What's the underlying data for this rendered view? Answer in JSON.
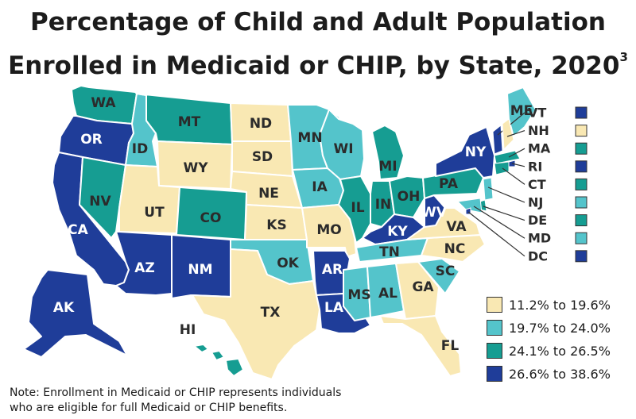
{
  "title": {
    "line1": "Percentage of Child and Adult Population",
    "line2": "Enrolled in Medicaid or CHIP, by State, 2020",
    "footnote_marker": "3"
  },
  "colors": {
    "c1": "#f9e8b3",
    "c2": "#54c4cb",
    "c3": "#169d92",
    "c4": "#1f3d99",
    "map_bg": "#ffffff"
  },
  "legend": [
    {
      "label": "11.2% to 19.6%",
      "color": "#f9e8b3"
    },
    {
      "label": "19.7% to 24.0%",
      "color": "#54c4cb"
    },
    {
      "label": "24.1% to 26.5%",
      "color": "#169d92"
    },
    {
      "label": "26.6% to 38.6%",
      "color": "#1f3d99"
    }
  ],
  "states": {
    "WA": "c3",
    "OR": "c4",
    "CA": "c4",
    "NV": "c3",
    "ID": "c2",
    "MT": "c3",
    "WY": "c1",
    "UT": "c1",
    "AZ": "c4",
    "CO": "c3",
    "NM": "c4",
    "ND": "c1",
    "SD": "c1",
    "NE": "c1",
    "KS": "c1",
    "OK": "c2",
    "TX": "c1",
    "MN": "c2",
    "IA": "c2",
    "MO": "c1",
    "AR": "c4",
    "LA": "c4",
    "WI": "c2",
    "IL": "c3",
    "MI": "c3",
    "IN": "c3",
    "OH": "c3",
    "KY": "c4",
    "TN": "c2",
    "MS": "c2",
    "AL": "c2",
    "GA": "c1",
    "FL": "c1",
    "SC": "c2",
    "NC": "c1",
    "VA": "c1",
    "WV": "c4",
    "PA": "c3",
    "NY": "c4",
    "ME": "c2",
    "AK": "c4",
    "HI": "c3"
  },
  "side_states": [
    {
      "code": "VT",
      "color": "c4"
    },
    {
      "code": "NH",
      "color": "c1"
    },
    {
      "code": "MA",
      "color": "c3"
    },
    {
      "code": "RI",
      "color": "c4"
    },
    {
      "code": "CT",
      "color": "c3"
    },
    {
      "code": "NJ",
      "color": "c2"
    },
    {
      "code": "DE",
      "color": "c3"
    },
    {
      "code": "MD",
      "color": "c2"
    },
    {
      "code": "DC",
      "color": "c4"
    }
  ],
  "note": {
    "line1": "Note: Enrollment in Medicaid or CHIP represents individuals",
    "line2": "who are eligible for full Medicaid or CHIP benefits."
  }
}
